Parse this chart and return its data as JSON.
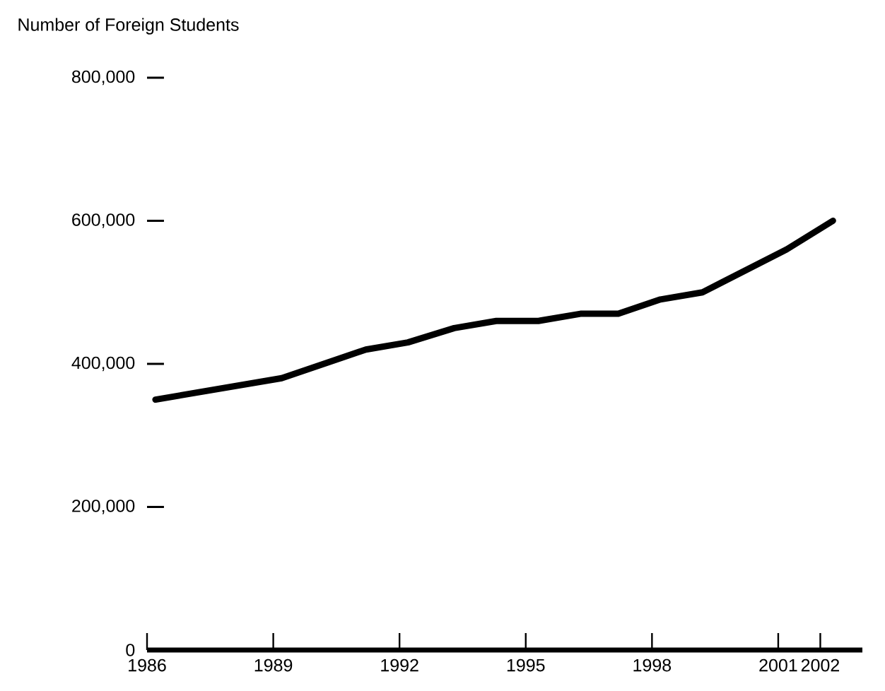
{
  "chart_data": {
    "type": "line",
    "ylabel": "Number of Foreign Students",
    "x": [
      1986.2,
      1989.2,
      1991.2,
      1992.2,
      1993.3,
      1994.3,
      1995.3,
      1996.3,
      1997.2,
      1998.2,
      1999.2,
      2001.2,
      2002.3
    ],
    "series": [
      {
        "color": "#000000",
        "values": [
          350000,
          380000,
          420000,
          430000,
          450000,
          460000,
          460000,
          470000,
          470000,
          490000,
          500000,
          560000,
          600000
        ]
      }
    ],
    "xlim": [
      1986,
      2003
    ],
    "xticks": [
      1986,
      1989,
      1992,
      1995,
      1998,
      2001,
      2002
    ],
    "ylim": [
      0,
      800000
    ],
    "yticks": [
      0,
      {
        "value": 200000,
        "label": "200,000"
      },
      {
        "value": 400000,
        "label": "400,000"
      },
      {
        "value": 600000,
        "label": "600,000"
      },
      {
        "value": 800000,
        "label": "800,000"
      }
    ],
    "marker": "none",
    "line_style": "solid"
  }
}
